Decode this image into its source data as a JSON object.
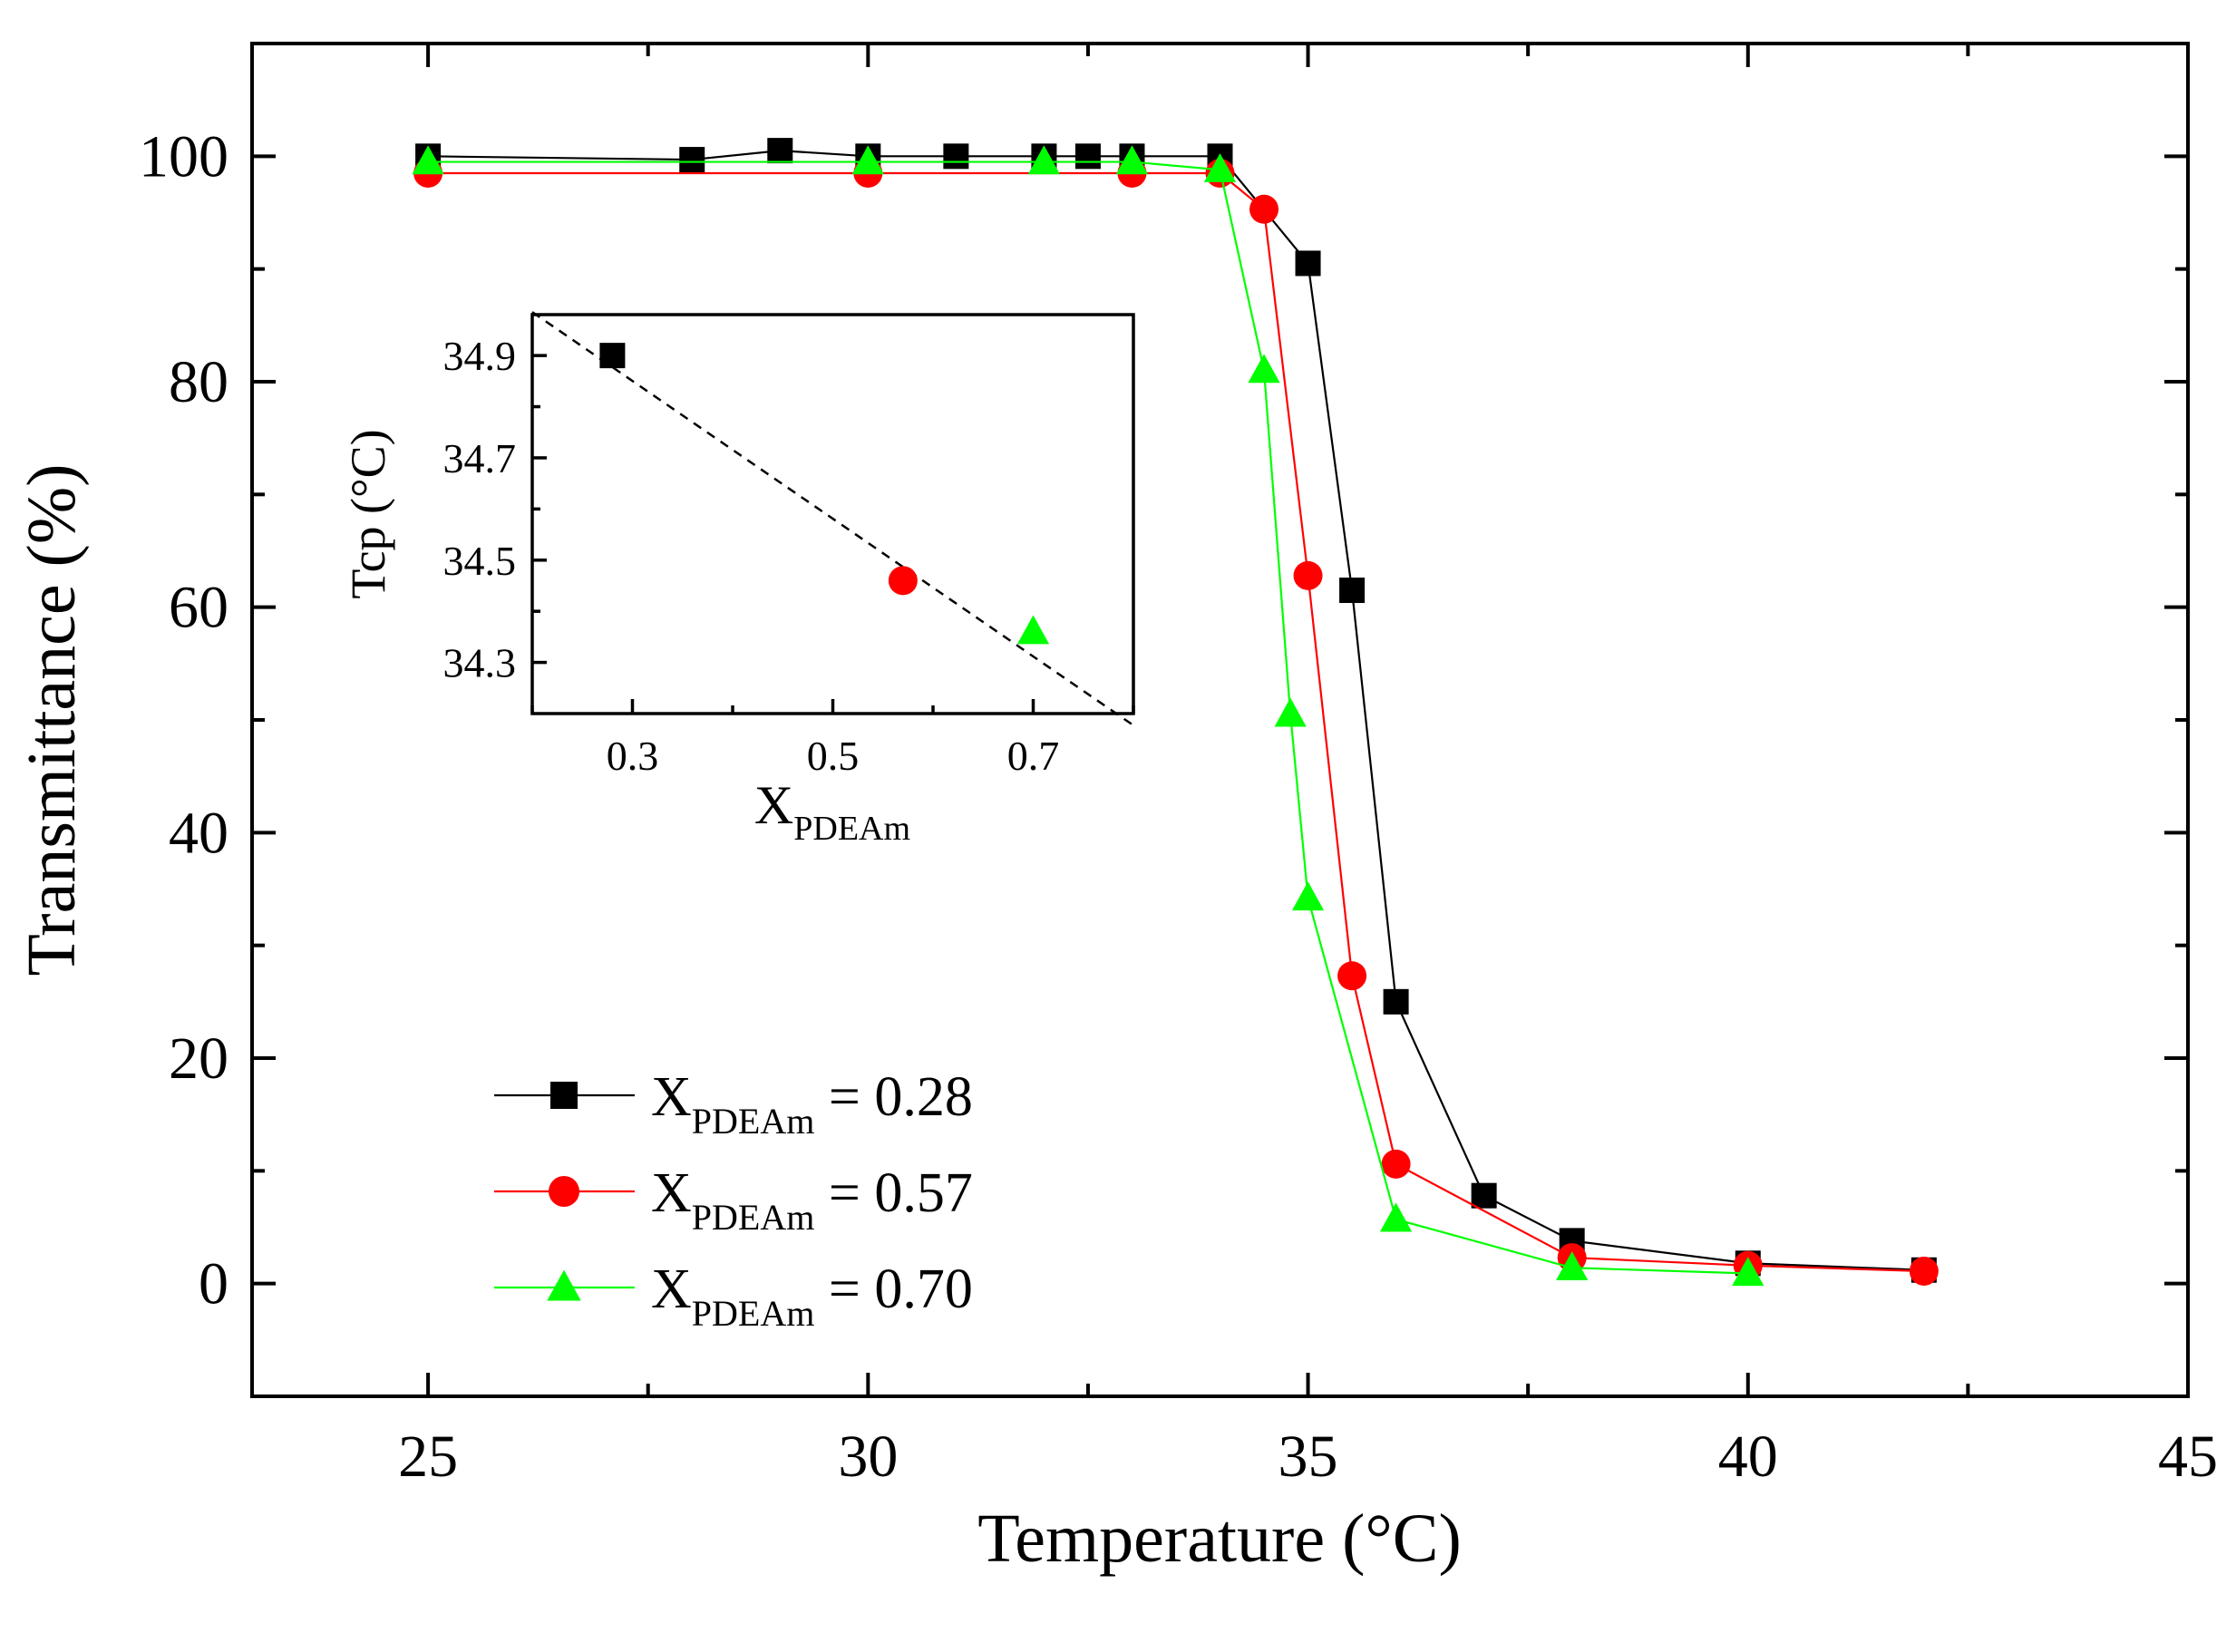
{
  "chart_data": [
    {
      "type": "line",
      "title": "",
      "xlabel": "Temperature (°C)",
      "ylabel": "Transmittance (%)",
      "xlim": [
        23,
        45
      ],
      "ylim": [
        -10,
        110
      ],
      "xticks": [
        25,
        30,
        35,
        40,
        45
      ],
      "yticks": [
        0,
        20,
        40,
        60,
        80,
        100
      ],
      "legend_position": "bottom-left",
      "series": [
        {
          "name": "X_PDEAm = 0.28",
          "label_prefix": "X",
          "label_sub": "PDEAm",
          "label_suffix": " = 0.28",
          "color": "#000000",
          "marker": "square",
          "x": [
            25,
            28,
            29,
            30,
            31,
            32,
            32.5,
            33,
            34,
            35,
            35.5,
            36,
            37,
            38,
            40,
            42
          ],
          "values": [
            100,
            99.7,
            100.5,
            100,
            100,
            100,
            100,
            100,
            100,
            90.5,
            61.5,
            25,
            7.8,
            3.8,
            1.8,
            1.2
          ]
        },
        {
          "name": "X_PDEAm = 0.57",
          "label_prefix": "X",
          "label_sub": "PDEAm",
          "label_suffix": " = 0.57",
          "color": "#ff0000",
          "marker": "circle",
          "x": [
            25,
            30,
            33,
            34,
            34.5,
            35,
            35.5,
            36,
            38,
            40,
            42
          ],
          "values": [
            98.5,
            98.5,
            98.5,
            98.5,
            95.3,
            62.8,
            27.3,
            10.6,
            2.3,
            1.6,
            1.1
          ]
        },
        {
          "name": "X_PDEAm = 0.70",
          "label_prefix": "X",
          "label_sub": "PDEAm",
          "label_suffix": " = 0.70",
          "color": "#00ff00",
          "marker": "triangle",
          "x": [
            25,
            30,
            32,
            33,
            34,
            34.5,
            34.8,
            35,
            36,
            38,
            40
          ],
          "values": [
            99.5,
            99.5,
            99.5,
            99.5,
            98.8,
            81,
            50.5,
            34.2,
            5.7,
            1.4,
            0.9
          ]
        }
      ]
    },
    {
      "type": "scatter",
      "title": "",
      "xlabel_prefix": "X",
      "xlabel_sub": "PDEAm",
      "ylabel": "Tcp (°C)",
      "xlim": [
        0.2,
        0.8
      ],
      "ylim": [
        34.2,
        34.98
      ],
      "xticks": [
        0.3,
        0.5,
        0.7
      ],
      "yticks": [
        34.3,
        34.5,
        34.7,
        34.9
      ],
      "x_minor_ticks": [
        0.2,
        0.4,
        0.6,
        0.8
      ],
      "y_minor_ticks": [
        34.4,
        34.6,
        34.8
      ],
      "fit_line": {
        "x": [
          0.2,
          0.8
        ],
        "values": [
          34.985,
          34.177
        ]
      },
      "points": [
        {
          "x": 0.28,
          "value": 34.9,
          "color": "#000000",
          "marker": "square"
        },
        {
          "x": 0.57,
          "value": 34.46,
          "color": "#ff0000",
          "marker": "circle"
        },
        {
          "x": 0.7,
          "value": 34.36,
          "color": "#00ff00",
          "marker": "triangle"
        }
      ]
    }
  ]
}
